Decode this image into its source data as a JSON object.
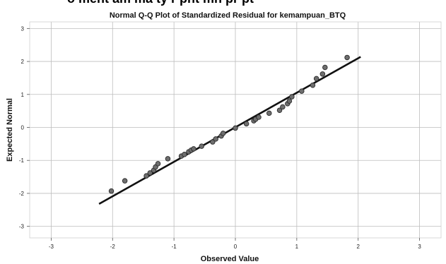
{
  "header_cut_text": "o         ment      am    ma  ty  r  pnt    mn    pr    pt",
  "chart_data": {
    "type": "scatter",
    "title": "Normal Q-Q Plot of Standardized Residual for kemampuan_BTQ",
    "xlabel": "Observed Value",
    "ylabel": "Expected Normal",
    "xlim": [
      -3.35,
      3.35
    ],
    "ylim": [
      -3.35,
      3.2
    ],
    "xticks": [
      "-3",
      "-2",
      "-1",
      "0",
      "1",
      "2",
      "3"
    ],
    "yticks": [
      "3",
      "2",
      "1",
      "0",
      "-1",
      "-2",
      "-3"
    ],
    "grid": true,
    "reference_line": {
      "x": [
        -2.22,
        2.04
      ],
      "y": [
        -2.32,
        2.14
      ]
    },
    "series": [
      {
        "x": [
          -2.02,
          -1.8,
          -1.45,
          -1.39,
          -1.33,
          -1.3,
          -1.26,
          -1.1,
          -0.88,
          -0.83,
          -0.76,
          -0.72,
          -0.68,
          -0.55,
          -0.37,
          -0.32,
          -0.23,
          -0.2,
          0.0,
          0.18,
          0.3,
          0.33,
          0.38,
          0.55,
          0.72,
          0.77,
          0.85,
          0.88,
          0.92,
          1.08,
          1.26,
          1.32,
          1.42,
          1.46,
          1.82
        ],
        "y": [
          -1.93,
          -1.62,
          -1.47,
          -1.38,
          -1.3,
          -1.2,
          -1.1,
          -0.95,
          -0.87,
          -0.82,
          -0.74,
          -0.69,
          -0.65,
          -0.57,
          -0.44,
          -0.35,
          -0.26,
          -0.18,
          -0.02,
          0.11,
          0.2,
          0.25,
          0.31,
          0.43,
          0.52,
          0.62,
          0.72,
          0.8,
          0.93,
          1.1,
          1.28,
          1.48,
          1.62,
          1.82,
          2.12
        ]
      }
    ]
  }
}
